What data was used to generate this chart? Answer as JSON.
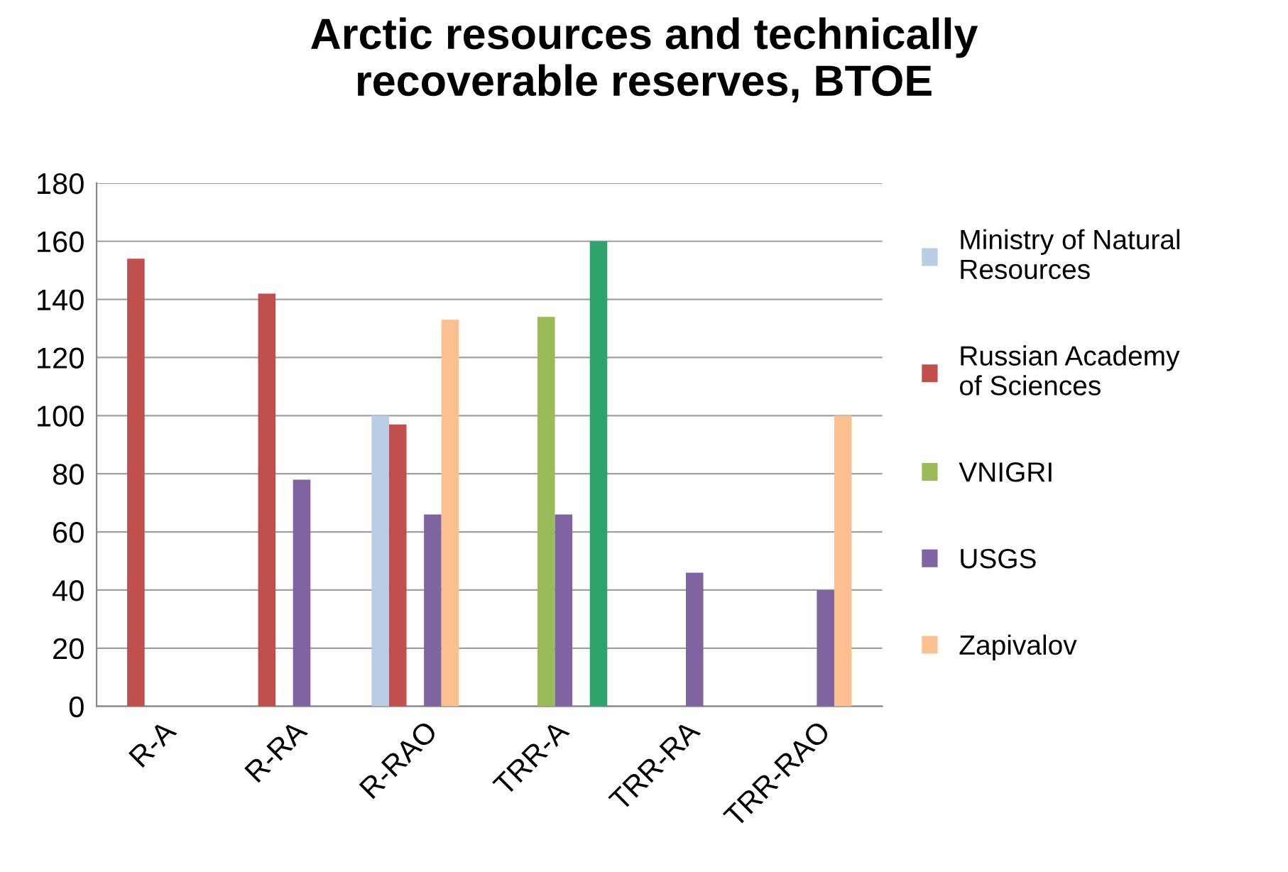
{
  "chart_data": {
    "type": "bar",
    "title": "Arctic resources and technically\nrecoverable reserves, BTOE",
    "categories": [
      "R-A",
      "R-RA",
      "R-RAO",
      "TRR-A",
      "TRR-RA",
      "TRR-RAO"
    ],
    "series": [
      {
        "name": "Ministry of Natural\nResources",
        "color": "#b9cde5",
        "values": [
          null,
          null,
          100,
          null,
          null,
          null
        ]
      },
      {
        "name": "Russian Academy\nof Sciences",
        "color": "#c0504d",
        "values": [
          154,
          142,
          97,
          null,
          null,
          null
        ]
      },
      {
        "name": "VNIGRI",
        "color": "#9bbb59",
        "values": [
          null,
          null,
          null,
          134,
          null,
          null
        ]
      },
      {
        "name": "USGS",
        "color": "#8064a2",
        "values": [
          null,
          78,
          66,
          66,
          46,
          40
        ]
      },
      {
        "name": "Zapivalov",
        "color": "#fac090",
        "values": [
          null,
          null,
          133,
          null,
          null,
          100
        ]
      },
      {
        "color": "#2ea36b",
        "values": [
          null,
          null,
          null,
          160,
          null,
          null
        ]
      }
    ],
    "ylim": [
      0,
      180
    ],
    "yticks": [
      0,
      20,
      40,
      60,
      80,
      100,
      120,
      140,
      160,
      180
    ],
    "grid": "y",
    "legend": "right"
  }
}
